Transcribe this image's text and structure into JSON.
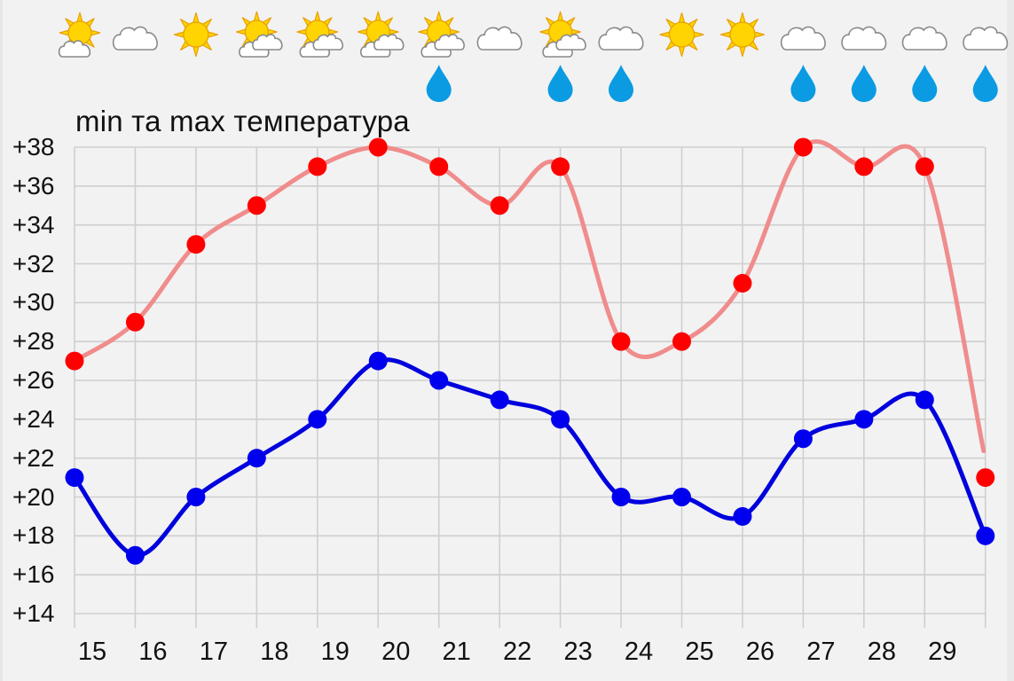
{
  "title": "min та max температура",
  "colors": {
    "background": "#f2f2f2",
    "grid": "#cfcfcf",
    "max_line": "#f08c8c",
    "max_point": "#ff0000",
    "min_line": "#0000dd",
    "min_point": "#0000ee",
    "rain_drop": "#0a9be3",
    "sun_fill": "#ffd400",
    "sun_stroke": "#e8a000",
    "cloud_stroke": "#8a8a8a"
  },
  "weather_icons": [
    {
      "day": 15,
      "icon": "partly-cloudy-icon",
      "rain": false
    },
    {
      "day": 16,
      "icon": "cloudy-icon",
      "rain": false
    },
    {
      "day": 17,
      "icon": "sunny-icon",
      "rain": false
    },
    {
      "day": 18,
      "icon": "sun-with-clouds-icon",
      "rain": false
    },
    {
      "day": 19,
      "icon": "sun-with-clouds-icon",
      "rain": false
    },
    {
      "day": 20,
      "icon": "sun-with-clouds-icon",
      "rain": false
    },
    {
      "day": 21,
      "icon": "sun-with-clouds-icon",
      "rain": true
    },
    {
      "day": 22,
      "icon": "cloudy-icon",
      "rain": false
    },
    {
      "day": 23,
      "icon": "sun-with-clouds-icon",
      "rain": true
    },
    {
      "day": 24,
      "icon": "cloudy-icon",
      "rain": true
    },
    {
      "day": 25,
      "icon": "sunny-icon",
      "rain": false
    },
    {
      "day": 26,
      "icon": "sunny-icon",
      "rain": false
    },
    {
      "day": 27,
      "icon": "cloudy-icon",
      "rain": true
    },
    {
      "day": 28,
      "icon": "cloudy-icon",
      "rain": true
    },
    {
      "day": 29,
      "icon": "cloudy-icon",
      "rain": true
    },
    {
      "day": 30,
      "icon": "cloudy-icon",
      "rain": true
    }
  ],
  "y_axis": {
    "ticks": [
      "+38",
      "+36",
      "+34",
      "+32",
      "+30",
      "+28",
      "+26",
      "+24",
      "+22",
      "+20",
      "+18",
      "+16",
      "+14"
    ]
  },
  "x_axis": {
    "ticks": [
      "15",
      "16",
      "17",
      "18",
      "19",
      "20",
      "21",
      "22",
      "23",
      "24",
      "25",
      "26",
      "27",
      "28",
      "29"
    ]
  },
  "chart_data": {
    "type": "line",
    "title": "min та max температура",
    "xlabel": "",
    "ylabel": "",
    "x": [
      15,
      16,
      17,
      18,
      19,
      20,
      21,
      22,
      23,
      24,
      25,
      26,
      27,
      28,
      29,
      30
    ],
    "x_tick_labels": [
      "15",
      "16",
      "17",
      "18",
      "19",
      "20",
      "21",
      "22",
      "23",
      "24",
      "25",
      "26",
      "27",
      "28",
      "29"
    ],
    "y_tick_labels": [
      "+38",
      "+36",
      "+34",
      "+32",
      "+30",
      "+28",
      "+26",
      "+24",
      "+22",
      "+20",
      "+18",
      "+16",
      "+14"
    ],
    "ylim": [
      14,
      38
    ],
    "grid": true,
    "legend": null,
    "series": [
      {
        "name": "max",
        "color": "#ff0000",
        "line_color": "#f08c8c",
        "values": [
          27,
          29,
          33,
          35,
          37,
          38,
          37,
          35,
          37,
          28,
          28,
          31,
          38,
          37,
          37,
          21
        ]
      },
      {
        "name": "min",
        "color": "#0000ee",
        "line_color": "#0000dd",
        "values": [
          21,
          17,
          20,
          22,
          24,
          27,
          26,
          25,
          24,
          20,
          20,
          19,
          23,
          24,
          25,
          18
        ]
      }
    ]
  }
}
